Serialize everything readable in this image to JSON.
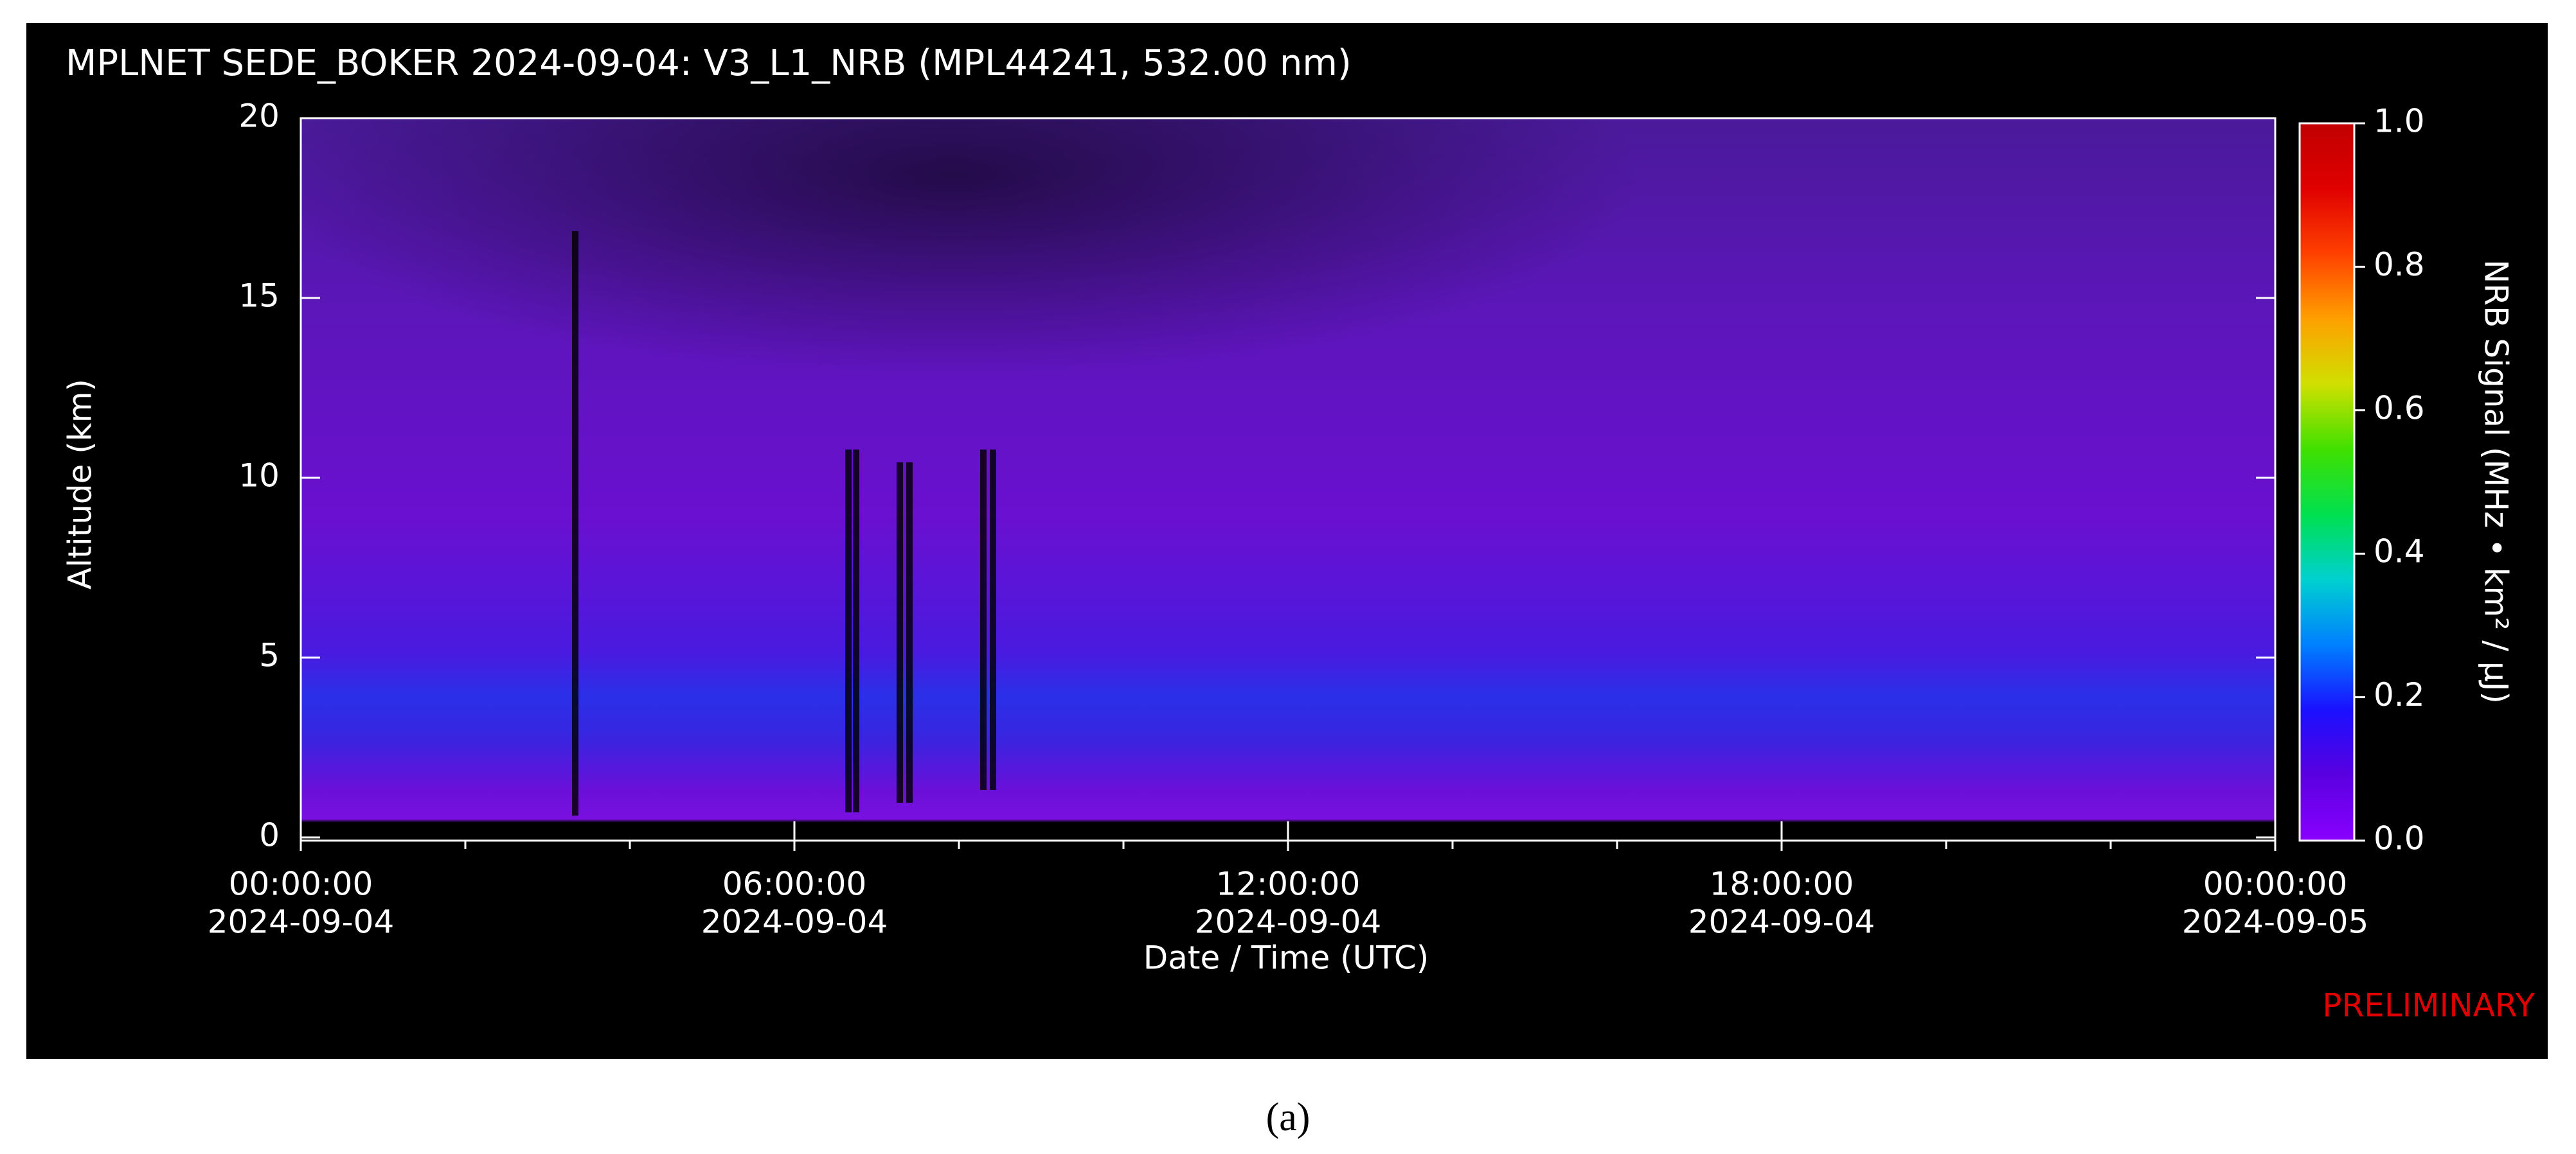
{
  "chart_data": {
    "type": "heatmap",
    "title": "MPLNET SEDE_BOKER 2024-09-04:  V3_L1_NRB  (MPL44241, 532.00 nm)",
    "x_label": "Date / Time (UTC)",
    "y_label": "Altitude (km)",
    "colorbar_label": "NRB Signal (MHz • km² / μJ)",
    "annotation": "PRELIMINARY",
    "caption": "(a)",
    "xlim": [
      0,
      24
    ],
    "xticks": [
      {
        "value": 0,
        "label": "00:00:00"
      },
      {
        "value": 6,
        "label": "06:00:00"
      },
      {
        "value": 12,
        "label": "12:00:00"
      },
      {
        "value": 18,
        "label": "18:00:00"
      },
      {
        "value": 24,
        "label": "00:00:00"
      }
    ],
    "xtick_dates": [
      "2024-09-04",
      "2024-09-04",
      "2024-09-04",
      "2024-09-04",
      "2024-09-05"
    ],
    "xminorticks": [
      2,
      4,
      8,
      10,
      14,
      16,
      20,
      22
    ],
    "ylim": [
      0,
      20
    ],
    "yticks": [
      0,
      5,
      10,
      15,
      20
    ],
    "clim": [
      0,
      1
    ],
    "cticks": [
      {
        "value": 0,
        "label": "0.0"
      },
      {
        "value": 0.2,
        "label": "0.2"
      },
      {
        "value": 0.4,
        "label": "0.4"
      },
      {
        "value": 0.6,
        "label": "0.6"
      },
      {
        "value": 0.8,
        "label": "0.8"
      },
      {
        "value": 1,
        "label": "1.0"
      }
    ],
    "colormap": [
      "#8a00ff",
      "#5a00e0",
      "#1a10ff",
      "#0080ff",
      "#00d0d0",
      "#00e050",
      "#40e000",
      "#d0e000",
      "#ffa000",
      "#ff4000",
      "#e00000",
      "#c00000"
    ]
  }
}
